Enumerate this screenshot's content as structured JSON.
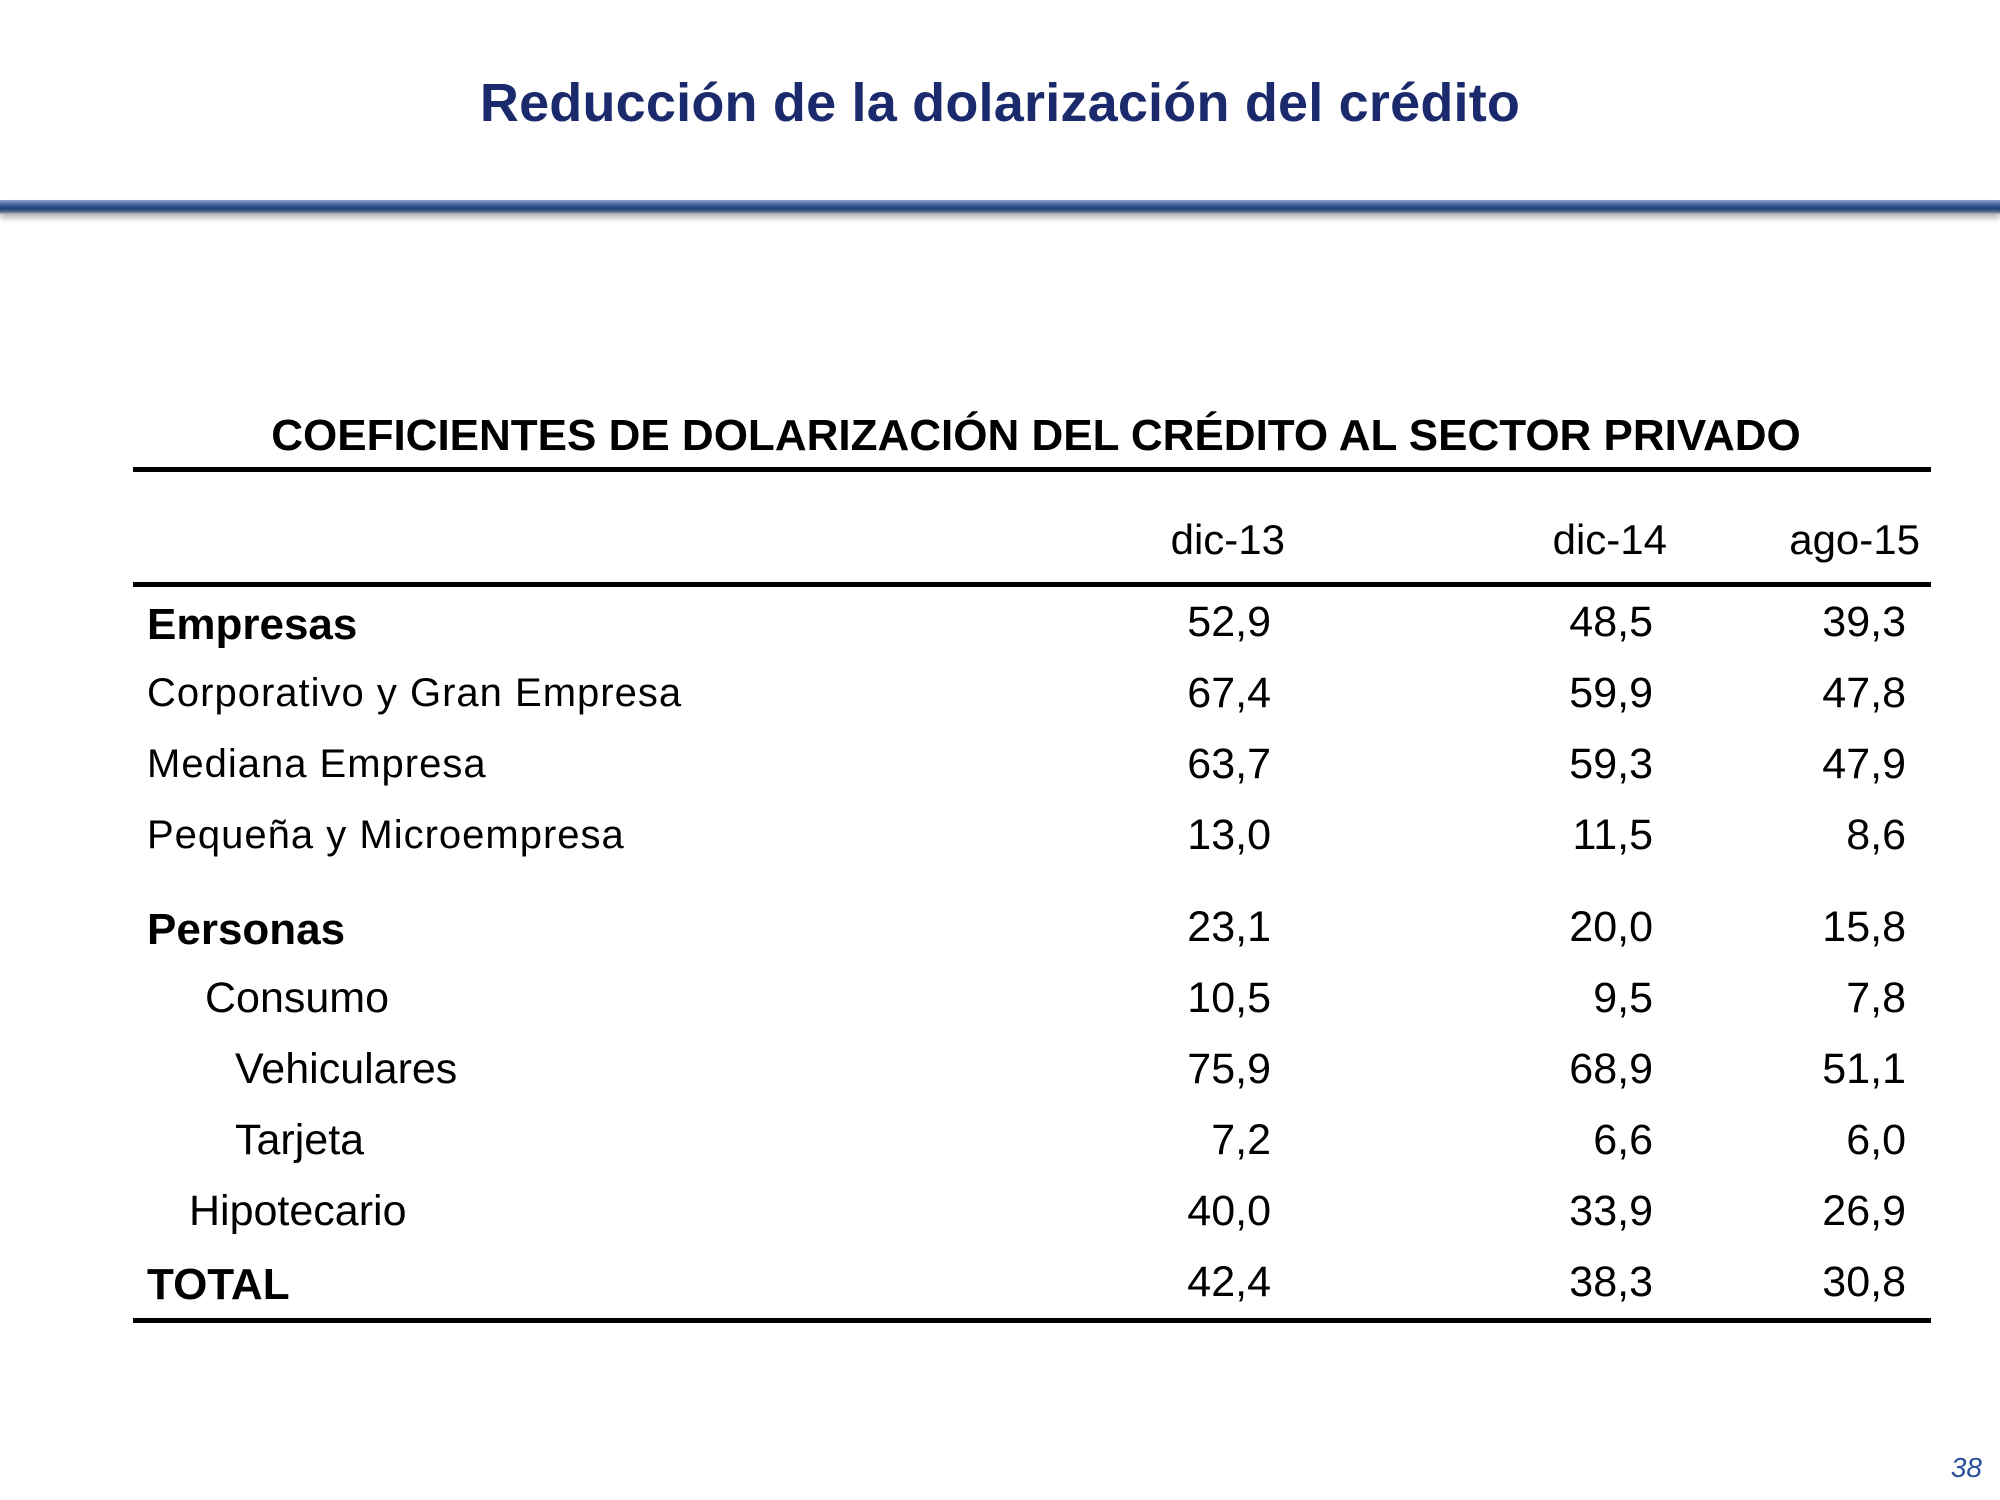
{
  "slide": {
    "title": "Reducción de la dolarización del crédito",
    "page_number": "38",
    "colors": {
      "title": "#1a2a6c",
      "rule": "#1f3f7c",
      "page_number": "#2a4f9c"
    }
  },
  "table": {
    "title": "COEFICIENTES DE DOLARIZACIÓN DEL CRÉDITO AL SECTOR PRIVADO",
    "columns": [
      "dic-13",
      "dic-14",
      "ago-15"
    ],
    "rows": [
      {
        "label": "Empresas",
        "values": [
          "52,9",
          "48,5",
          "39,3"
        ]
      },
      {
        "label": "Corporativo y Gran Empresa",
        "values": [
          "67,4",
          "59,9",
          "47,8"
        ]
      },
      {
        "label": "Mediana Empresa",
        "values": [
          "63,7",
          "59,3",
          "47,9"
        ]
      },
      {
        "label": "Pequeña y Microempresa",
        "values": [
          "13,0",
          "11,5",
          "8,6"
        ]
      },
      {
        "label": "Personas",
        "values": [
          "23,1",
          "20,0",
          "15,8"
        ]
      },
      {
        "label": "Consumo",
        "values": [
          "10,5",
          "9,5",
          "7,8"
        ]
      },
      {
        "label": "Vehiculares",
        "values": [
          "75,9",
          "68,9",
          "51,1"
        ]
      },
      {
        "label": "Tarjeta",
        "values": [
          "7,2",
          "6,6",
          "6,0"
        ]
      },
      {
        "label": "Hipotecario",
        "values": [
          "40,0",
          "33,9",
          "26,9"
        ]
      },
      {
        "label": "TOTAL",
        "values": [
          "42,4",
          "38,3",
          "30,8"
        ]
      }
    ]
  }
}
